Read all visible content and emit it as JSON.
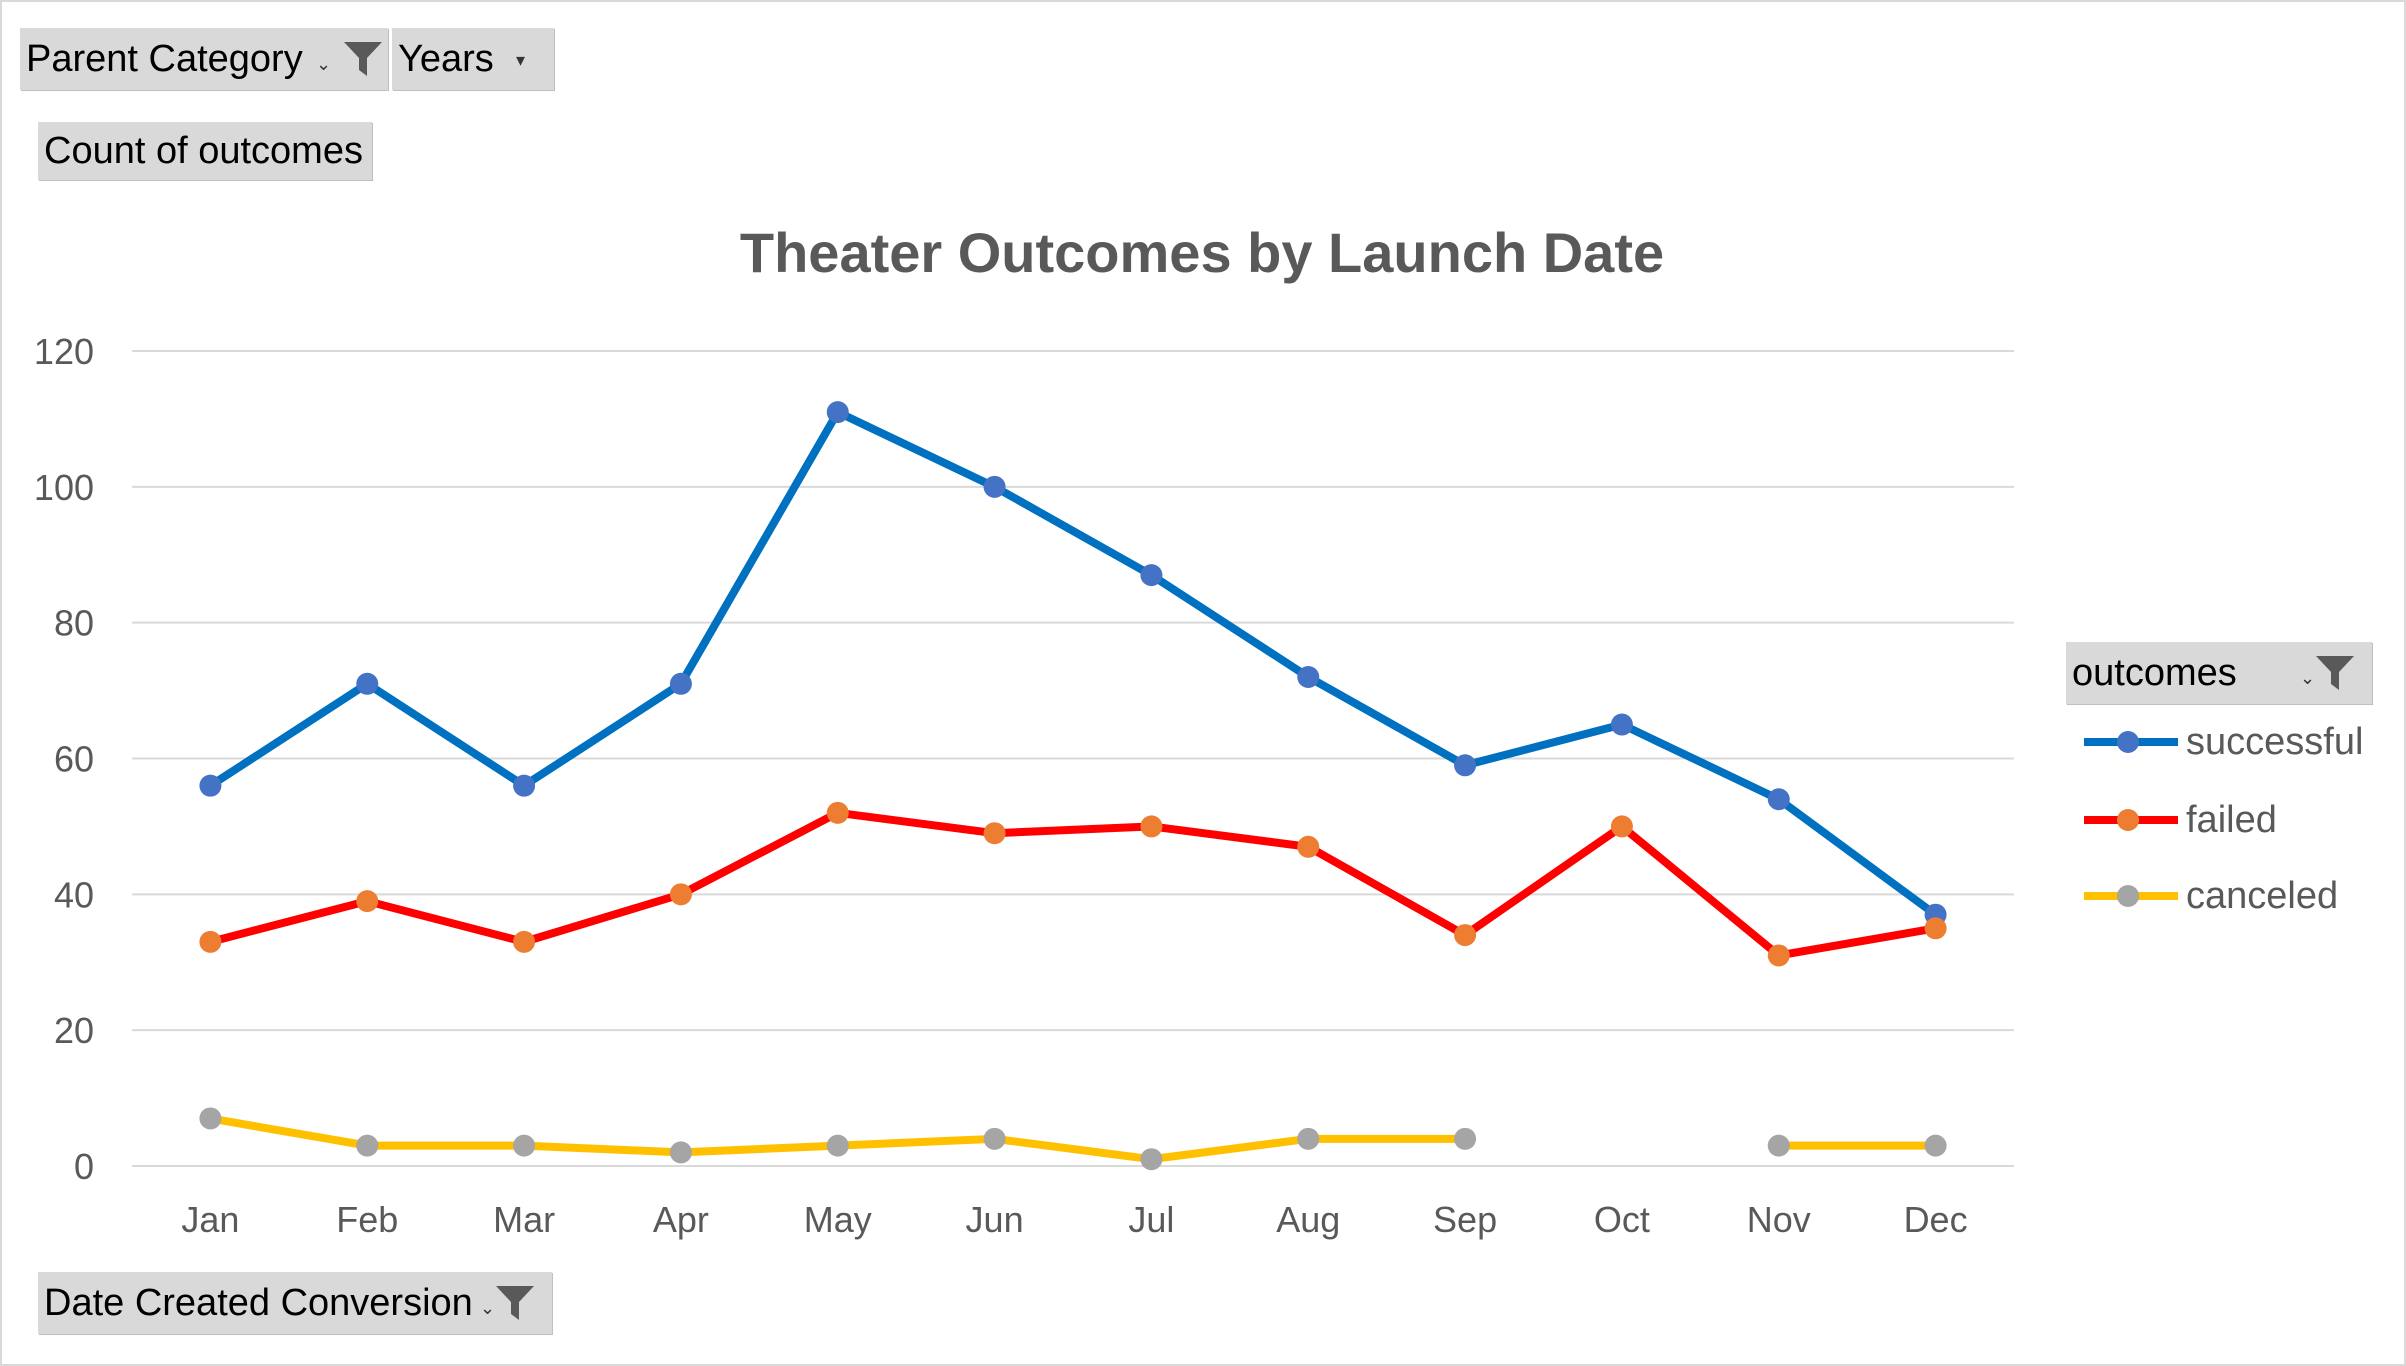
{
  "filters": {
    "parent_category": "Parent Category",
    "years": "Years",
    "values_field": "Count of outcomes",
    "axis_field": "Date Created Conversion",
    "legend_field": "outcomes"
  },
  "colors": {
    "successful_line": "#0070C0",
    "successful_marker": "#4472C4",
    "failed_line": "#FF0000",
    "failed_marker": "#ED7D31",
    "canceled_line": "#FFC000",
    "canceled_marker": "#A5A5A5",
    "grid": "#d9d9d9",
    "title": "#595959",
    "axis_text": "#595959"
  },
  "chart_data": {
    "type": "line",
    "title": "Theater Outcomes by Launch Date",
    "xlabel": "",
    "ylabel": "",
    "categories": [
      "Jan",
      "Feb",
      "Mar",
      "Apr",
      "May",
      "Jun",
      "Jul",
      "Aug",
      "Sep",
      "Oct",
      "Nov",
      "Dec"
    ],
    "ylim": [
      0,
      120
    ],
    "yticks": [
      0,
      20,
      40,
      60,
      80,
      100,
      120
    ],
    "grid": true,
    "legend_position": "right",
    "series": [
      {
        "name": "successful",
        "values": [
          56,
          71,
          56,
          71,
          111,
          100,
          87,
          72,
          59,
          65,
          54,
          37
        ]
      },
      {
        "name": "failed",
        "values": [
          33,
          39,
          33,
          40,
          52,
          49,
          50,
          47,
          34,
          50,
          31,
          35
        ]
      },
      {
        "name": "canceled",
        "values": [
          7,
          3,
          3,
          2,
          3,
          4,
          1,
          4,
          4,
          null,
          3,
          3
        ]
      }
    ]
  }
}
